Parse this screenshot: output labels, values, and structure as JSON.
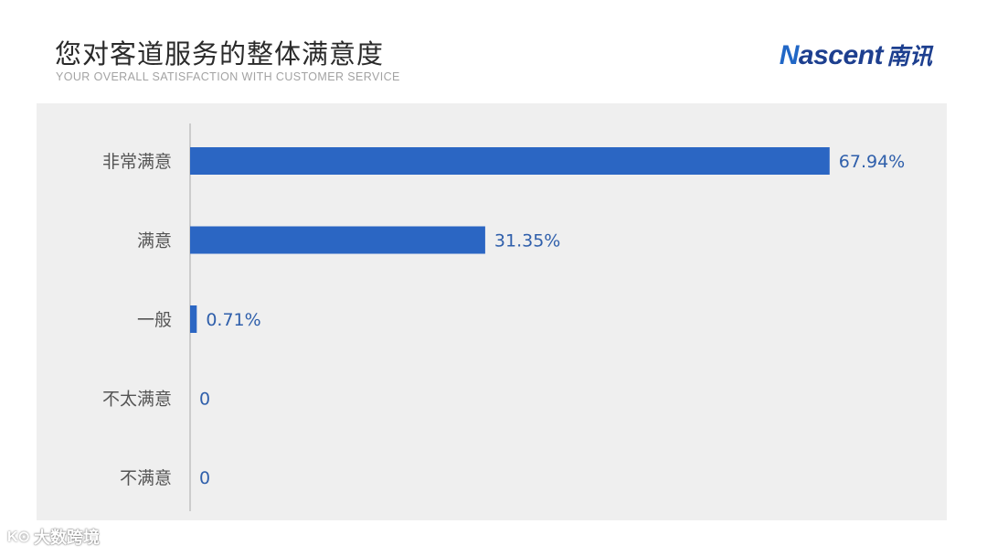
{
  "header": {
    "title": "您对客道服务的整体满意度",
    "subtitle": "YOUR OVERALL SATISFACTION WITH CUSTOMER SERVICE"
  },
  "logo": {
    "word_accent": "N",
    "word_rest": "ascent",
    "chinese": "南讯"
  },
  "watermark": {
    "mark": "K⊙",
    "text": "大数跨境"
  },
  "chart_data": {
    "type": "bar",
    "orientation": "horizontal",
    "categories": [
      "非常满意",
      "满意",
      "一般",
      "不太满意",
      "不满意"
    ],
    "values": [
      67.94,
      31.35,
      0.71,
      0,
      0
    ],
    "data_labels": [
      "67.94%",
      "31.35%",
      "0.71%",
      "0",
      "0"
    ],
    "xlim": [
      0,
      100
    ],
    "grid": false,
    "colors": {
      "bar": "#2b66c3",
      "label": "#2f5fab",
      "category": "#555555",
      "axis": "#b5b5b5",
      "panel": "#efefef"
    }
  }
}
